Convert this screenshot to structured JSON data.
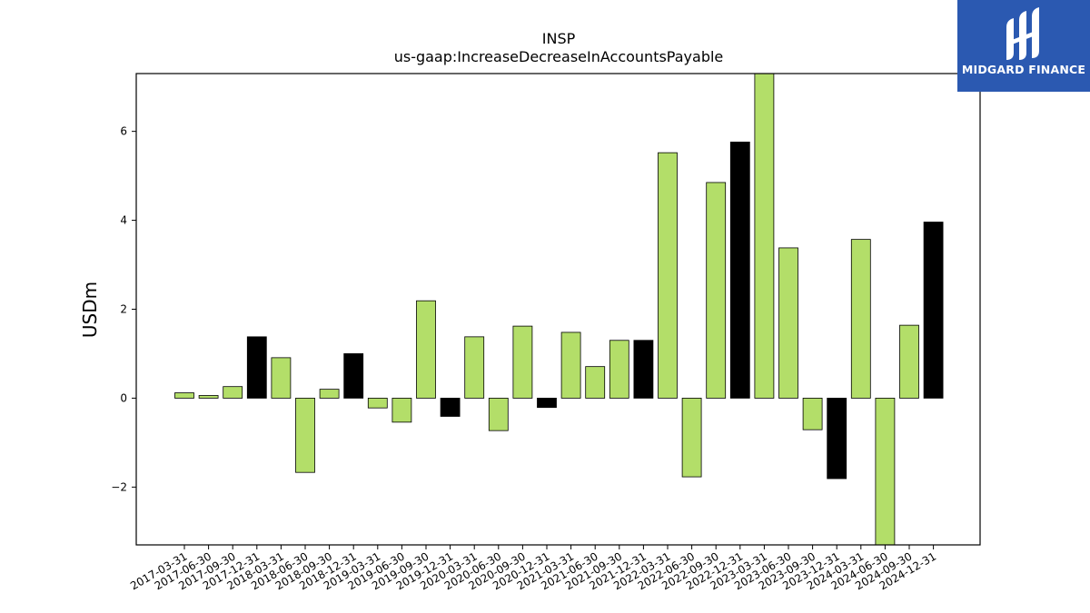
{
  "chart_data": {
    "type": "bar",
    "title": "INSP",
    "subtitle": "us-gaap:IncreaseDecreaseInAccountsPayable",
    "xlabel": "",
    "ylabel": "USDm",
    "ylim": [
      -3.3,
      7.3
    ],
    "yticks": [
      -2,
      0,
      2,
      4,
      6
    ],
    "ytick_labels": [
      "−2",
      "0",
      "2",
      "4",
      "6"
    ],
    "grid": false,
    "colors": {
      "quarterly": "#b3de69",
      "annual": "#000000",
      "edge": "#000000"
    },
    "categories": [
      "2017-03-31",
      "2017-06-30",
      "2017-09-30",
      "2017-12-31",
      "2018-03-31",
      "2018-06-30",
      "2018-09-30",
      "2018-12-31",
      "2019-03-31",
      "2019-06-30",
      "2019-09-30",
      "2019-12-31",
      "2020-03-31",
      "2020-06-30",
      "2020-09-30",
      "2020-12-31",
      "2021-03-31",
      "2021-06-30",
      "2021-09-30",
      "2021-12-31",
      "2022-03-31",
      "2022-06-30",
      "2022-09-30",
      "2022-12-31",
      "2023-03-31",
      "2023-06-30",
      "2023-09-30",
      "2023-12-31",
      "2024-03-31",
      "2024-06-30",
      "2024-09-30",
      "2024-12-31"
    ],
    "values": [
      0.12,
      0.06,
      0.26,
      1.38,
      0.91,
      -1.67,
      0.2,
      1.0,
      -0.22,
      -0.54,
      2.19,
      -0.41,
      1.38,
      -0.73,
      1.62,
      -0.21,
      1.48,
      0.71,
      1.3,
      1.3,
      5.52,
      -1.77,
      4.85,
      5.76,
      7.3,
      3.38,
      -0.71,
      -1.81,
      3.57,
      -3.3,
      1.64,
      3.96
    ],
    "bar_colors": [
      "quarterly",
      "quarterly",
      "quarterly",
      "annual",
      "quarterly",
      "quarterly",
      "quarterly",
      "annual",
      "quarterly",
      "quarterly",
      "quarterly",
      "annual",
      "quarterly",
      "quarterly",
      "quarterly",
      "annual",
      "quarterly",
      "quarterly",
      "quarterly",
      "annual",
      "quarterly",
      "quarterly",
      "quarterly",
      "annual",
      "quarterly",
      "quarterly",
      "quarterly",
      "annual",
      "quarterly",
      "quarterly",
      "quarterly",
      "annual"
    ]
  },
  "logo": {
    "text": "MIDGARD FINANCE",
    "background": "#2b59b1"
  }
}
